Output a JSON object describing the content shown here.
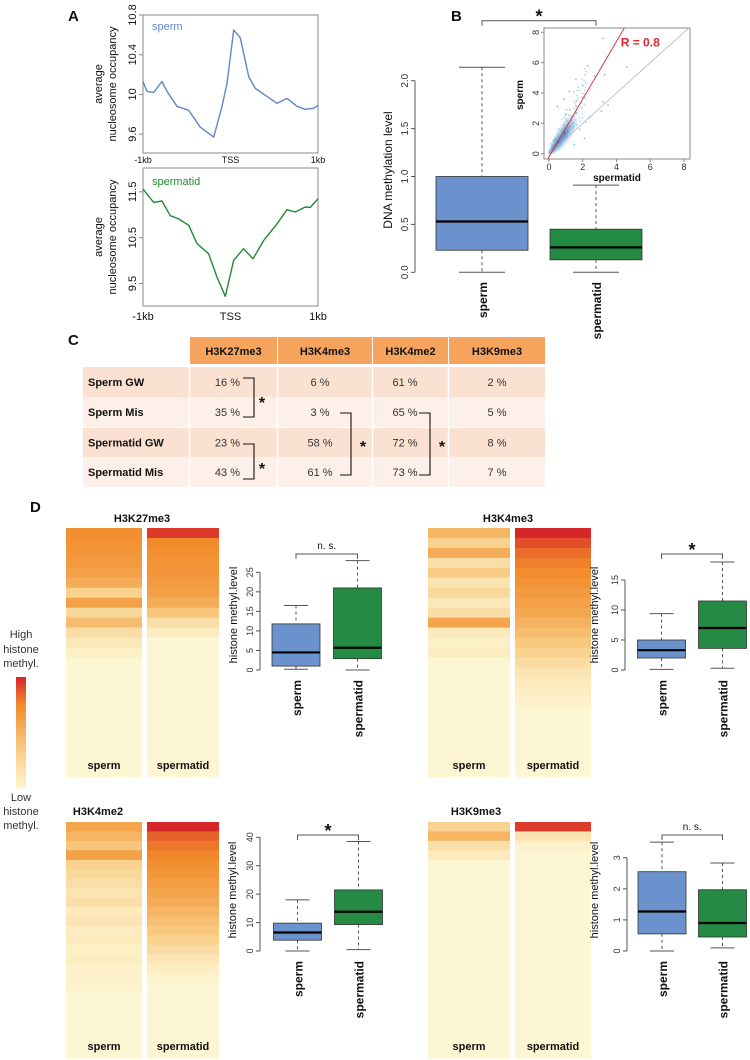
{
  "panel_labels": [
    "A",
    "B",
    "C",
    "D"
  ],
  "colors": {
    "sperm": "#6b92cc",
    "sperm_line": "#5f87c6",
    "spermatid": "#258a43",
    "spermatid_line": "#1e8a35",
    "fit_line": "#e0262b",
    "table_header": "#f5a35d",
    "table_row_dark": "#fbe1d2",
    "table_row_light": "#fdf0e8",
    "heat_low": "#fdf6d3",
    "heat_mid": "#f28a2a",
    "heat_high": "#d7262a"
  },
  "chart_data": [
    {
      "panel": "A",
      "type": "line",
      "ylabel_lines": [
        "average",
        "nucleosome occupancy"
      ],
      "series_label": "sperm",
      "xtick_labels": [
        "-1kb",
        "TSS",
        "1kb"
      ],
      "xlim": [
        -1000,
        1000
      ],
      "ylim": [
        9.41,
        10.8
      ],
      "yticks": [
        9.6,
        10,
        10.4,
        10.8
      ],
      "x": [
        -1000,
        -954,
        -878,
        -783,
        -726,
        -611,
        -478,
        -345,
        -192,
        -97,
        -40,
        36,
        112,
        208,
        284,
        417,
        531,
        646,
        760,
        855,
        950,
        1000
      ],
      "y": [
        10.13,
        10.03,
        10.02,
        10.13,
        10.03,
        9.88,
        9.84,
        9.67,
        9.57,
        9.88,
        10.11,
        10.65,
        10.57,
        10.18,
        10.06,
        9.98,
        9.91,
        9.96,
        9.88,
        9.85,
        9.86,
        9.89
      ]
    },
    {
      "panel": "A",
      "type": "line",
      "ylabel_lines": [
        "average",
        "nucleosome occupancy"
      ],
      "series_label": "spermatid",
      "xtick_labels": [
        "-1kb",
        "TSS",
        "1kb"
      ],
      "xlim": [
        -1000,
        1000
      ],
      "ylim": [
        9.01,
        12.02
      ],
      "yticks": [
        9.5,
        10.5,
        11.5
      ],
      "x": [
        -1000,
        -878,
        -783,
        -688,
        -592,
        -478,
        -383,
        -250,
        -154,
        -59,
        36,
        150,
        257,
        379,
        531,
        646,
        741,
        855,
        912,
        1000
      ],
      "y": [
        11.56,
        11.27,
        11.3,
        10.98,
        10.91,
        10.77,
        10.37,
        10.15,
        9.64,
        9.22,
        10.01,
        10.26,
        10.04,
        10.44,
        10.8,
        11.11,
        11.06,
        11.17,
        11.16,
        11.35
      ]
    },
    {
      "panel": "B",
      "type": "box",
      "ylabel": "DNA methylation level",
      "categories": [
        "sperm",
        "spermatid"
      ],
      "yticks": [
        0.0,
        0.5,
        1.0,
        1.5,
        2.0
      ],
      "ytick_labels": [
        "0.0",
        "0.5",
        "1.0",
        "1.5",
        "2.0"
      ],
      "significance": "*",
      "boxes": [
        {
          "min": 0.0,
          "q1": 0.23,
          "median": 0.53,
          "q3": 1.0,
          "max": 2.14
        },
        {
          "min": 0.0,
          "q1": 0.13,
          "median": 0.26,
          "q3": 0.45,
          "max": 0.91
        }
      ]
    },
    {
      "panel": "B-inset",
      "type": "scatter",
      "xlabel": "spermatid",
      "ylabel": "sperm",
      "xlim": [
        0,
        8.3
      ],
      "ylim": [
        0,
        8.3
      ],
      "xticks": [
        0,
        2,
        4,
        6,
        8
      ],
      "yticks": [
        0,
        2,
        4,
        6,
        8
      ],
      "annotation": "R = 0.8",
      "fit_line": {
        "slope": 1.9,
        "intercept": -0.2
      },
      "identity_line": true,
      "points": [
        [
          3.2,
          7.6
        ],
        [
          4.6,
          5.7
        ],
        [
          2.3,
          5.8
        ],
        [
          1.6,
          4.9
        ],
        [
          2.0,
          4.5
        ],
        [
          3.2,
          3.4
        ],
        [
          3.5,
          3.2
        ],
        [
          3.1,
          2.8
        ],
        [
          1.2,
          4.1
        ],
        [
          0.9,
          3.6
        ],
        [
          1.6,
          2.7
        ],
        [
          2.4,
          2.4
        ],
        [
          1.4,
          2.0
        ],
        [
          1.8,
          1.6
        ],
        [
          0.5,
          3.1
        ],
        [
          2.7,
          5.1
        ],
        [
          1.0,
          2.6
        ],
        [
          1.5,
          0.6
        ],
        [
          2.1,
          1.0
        ],
        [
          3.3,
          5.2
        ]
      ]
    },
    {
      "panel": "C",
      "type": "table",
      "columns": [
        "H3K27me3",
        "H3K4me3",
        "H3K4me2",
        "H3K9me3"
      ],
      "rows": [
        {
          "label": "Sperm GW",
          "values": [
            "16 %",
            "6 %",
            "61 %",
            "2 %"
          ]
        },
        {
          "label": "Sperm Mis",
          "values": [
            "35 %",
            "3 %",
            "65 %",
            "5 %"
          ]
        },
        {
          "label": "Spermatid GW",
          "values": [
            "23 %",
            "58 %",
            "72 %",
            "8 %"
          ]
        },
        {
          "label": "Spermatid Mis",
          "values": [
            "43 %",
            "61 %",
            "73 %",
            "7 %"
          ]
        }
      ],
      "significance_marks": [
        "*",
        "*",
        "*",
        "*"
      ]
    },
    {
      "panel": "D",
      "type": "heatmap+box",
      "title": "H3K27me3",
      "categories": [
        "sperm",
        "spermatid"
      ],
      "heatmap": [
        [
          0.72,
          0.7,
          0.68,
          0.66,
          0.62,
          0.55,
          0.3,
          0.62,
          0.25,
          0.45,
          0.2,
          0.12,
          0.05,
          0,
          0,
          0,
          0,
          0,
          0,
          0,
          0,
          0,
          0,
          0,
          0
        ],
        [
          0.95,
          0.75,
          0.72,
          0.7,
          0.68,
          0.65,
          0.62,
          0.55,
          0.4,
          0.2,
          0.08,
          0,
          0,
          0,
          0,
          0,
          0,
          0,
          0,
          0,
          0,
          0,
          0,
          0,
          0
        ]
      ],
      "ylabel": "histone methyl.level",
      "yticks": [
        0,
        5,
        10,
        15,
        20,
        25
      ],
      "significance": "n. s.",
      "boxes": [
        {
          "min": 0.2,
          "q1": 1.0,
          "median": 4.5,
          "q3": 11.8,
          "max": 16.5
        },
        {
          "min": 0.0,
          "q1": 2.9,
          "median": 5.7,
          "q3": 21.0,
          "max": 28.0
        }
      ]
    },
    {
      "panel": "D",
      "type": "heatmap+box",
      "title": "H3K4me3",
      "categories": [
        "sperm",
        "spermatid"
      ],
      "heatmap": [
        [
          0.5,
          0.3,
          0.55,
          0.2,
          0.35,
          0.15,
          0.25,
          0.12,
          0.2,
          0.6,
          0.1,
          0.05,
          0.08,
          0,
          0,
          0,
          0,
          0,
          0,
          0,
          0,
          0,
          0,
          0,
          0
        ],
        [
          1,
          0.9,
          0.82,
          0.78,
          0.74,
          0.7,
          0.66,
          0.62,
          0.58,
          0.52,
          0.45,
          0.38,
          0.3,
          0.22,
          0.15,
          0.1,
          0.06,
          0.03,
          0,
          0,
          0,
          0,
          0,
          0,
          0
        ]
      ],
      "ylabel": "histone methyl.level",
      "yticks": [
        0,
        5,
        10,
        15
      ],
      "significance": "*",
      "boxes": [
        {
          "min": 0.1,
          "q1": 2.0,
          "median": 3.3,
          "q3": 5.0,
          "max": 9.4
        },
        {
          "min": 0.3,
          "q1": 3.6,
          "median": 7.0,
          "q3": 11.5,
          "max": 18.0
        }
      ]
    },
    {
      "panel": "D",
      "type": "heatmap+box",
      "title": "H3K4me2",
      "categories": [
        "sperm",
        "spermatid"
      ],
      "heatmap": [
        [
          0.6,
          0.5,
          0.4,
          0.62,
          0.3,
          0.25,
          0.2,
          0.15,
          0.2,
          0.1,
          0.15,
          0.08,
          0.1,
          0.05,
          0.08,
          0.03,
          0.05,
          0.02,
          0,
          0,
          0,
          0,
          0,
          0,
          0
        ],
        [
          1,
          0.85,
          0.8,
          0.76,
          0.72,
          0.68,
          0.64,
          0.6,
          0.55,
          0.5,
          0.44,
          0.38,
          0.3,
          0.22,
          0.14,
          0.08,
          0.03,
          0,
          0,
          0,
          0,
          0,
          0,
          0,
          0
        ]
      ],
      "ylabel": "histone methyl.level",
      "yticks": [
        0,
        10,
        20,
        30,
        40
      ],
      "significance": "*",
      "boxes": [
        {
          "min": 0.0,
          "q1": 3.8,
          "median": 6.5,
          "q3": 9.8,
          "max": 18.0
        },
        {
          "min": 0.5,
          "q1": 9.3,
          "median": 13.8,
          "q3": 21.5,
          "max": 38.5
        }
      ]
    },
    {
      "panel": "D",
      "type": "heatmap+box",
      "title": "H3K9me3",
      "categories": [
        "sperm",
        "spermatid"
      ],
      "heatmap": [
        [
          0.3,
          0.5,
          0.2,
          0.1,
          0,
          0,
          0,
          0,
          0,
          0,
          0,
          0,
          0,
          0,
          0,
          0,
          0,
          0,
          0,
          0,
          0,
          0,
          0,
          0,
          0
        ],
        [
          0.95,
          0.15,
          0.04,
          0,
          0,
          0,
          0,
          0,
          0,
          0,
          0,
          0,
          0,
          0,
          0,
          0,
          0,
          0,
          0,
          0,
          0,
          0,
          0,
          0,
          0
        ]
      ],
      "ylabel": "histone methyl.level",
      "yticks": [
        0,
        1,
        2,
        3
      ],
      "significance": "n. s.",
      "boxes": [
        {
          "min": 0.0,
          "q1": 0.55,
          "median": 1.27,
          "q3": 2.55,
          "max": 3.5
        },
        {
          "min": 0.1,
          "q1": 0.45,
          "median": 0.9,
          "q3": 1.97,
          "max": 2.83
        }
      ]
    }
  ],
  "legend": {
    "high_lines": [
      "High",
      "histone",
      "methyl."
    ],
    "low_lines": [
      "Low",
      "histone",
      "methyl."
    ]
  }
}
